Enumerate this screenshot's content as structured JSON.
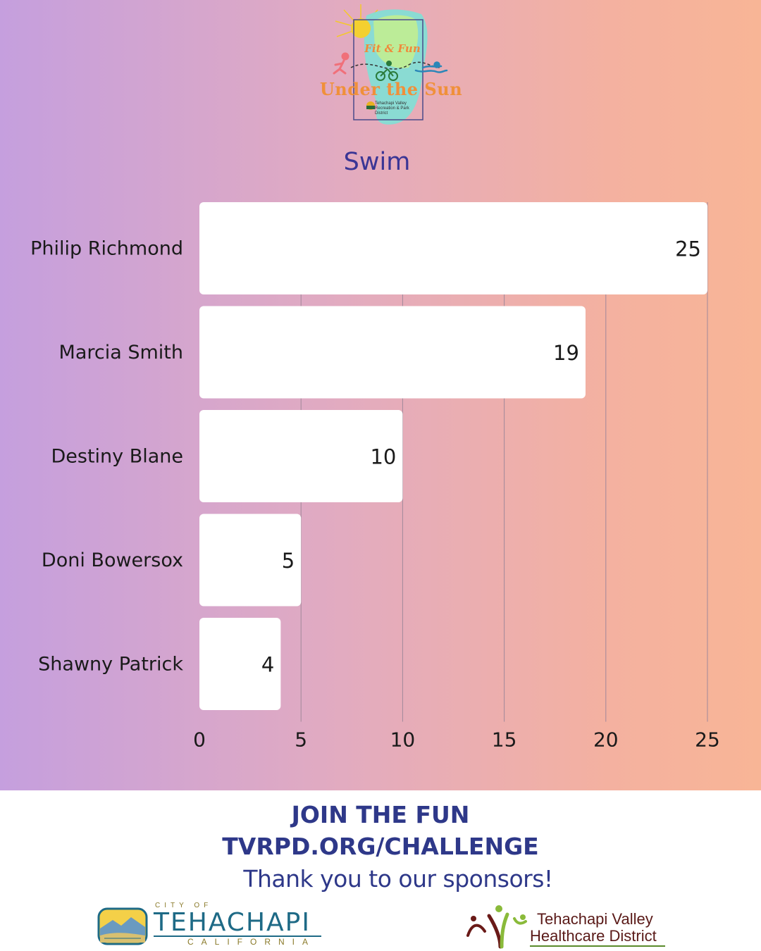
{
  "logo": {
    "tagline": "Fit & Fun",
    "title": "Under the Sun",
    "org": "Tehachapi Valley Recreation & Park District"
  },
  "chart_data": {
    "type": "bar",
    "orientation": "horizontal",
    "title": "Swim",
    "categories": [
      "Philip Richmond",
      "Marcia Smith",
      "Destiny Blane",
      "Doni Bowersox",
      "Shawny Patrick"
    ],
    "values": [
      25,
      19,
      10,
      5,
      4
    ],
    "xlim": [
      0,
      25
    ],
    "xticks": [
      0,
      5,
      10,
      15,
      20,
      25
    ],
    "grid": "vertical",
    "data_labels": true,
    "bar_color": "#ffffff",
    "grid_color": "#a0899a"
  },
  "footer": {
    "cta_line1": "JOIN THE FUN",
    "cta_line2": "TVRPD.ORG/CHALLENGE",
    "thanks": "Thank you to our sponsors!"
  },
  "sponsors": {
    "city": {
      "top": "CITY OF",
      "name": "TEHACHAPI",
      "state": "CALIFORNIA"
    },
    "healthcare": {
      "line1": "Tehachapi Valley",
      "line2": "Healthcare District"
    }
  },
  "colors": {
    "navy": "#2e3889",
    "title_purple": "#3a3595",
    "logo_orange": "#f0903a"
  }
}
